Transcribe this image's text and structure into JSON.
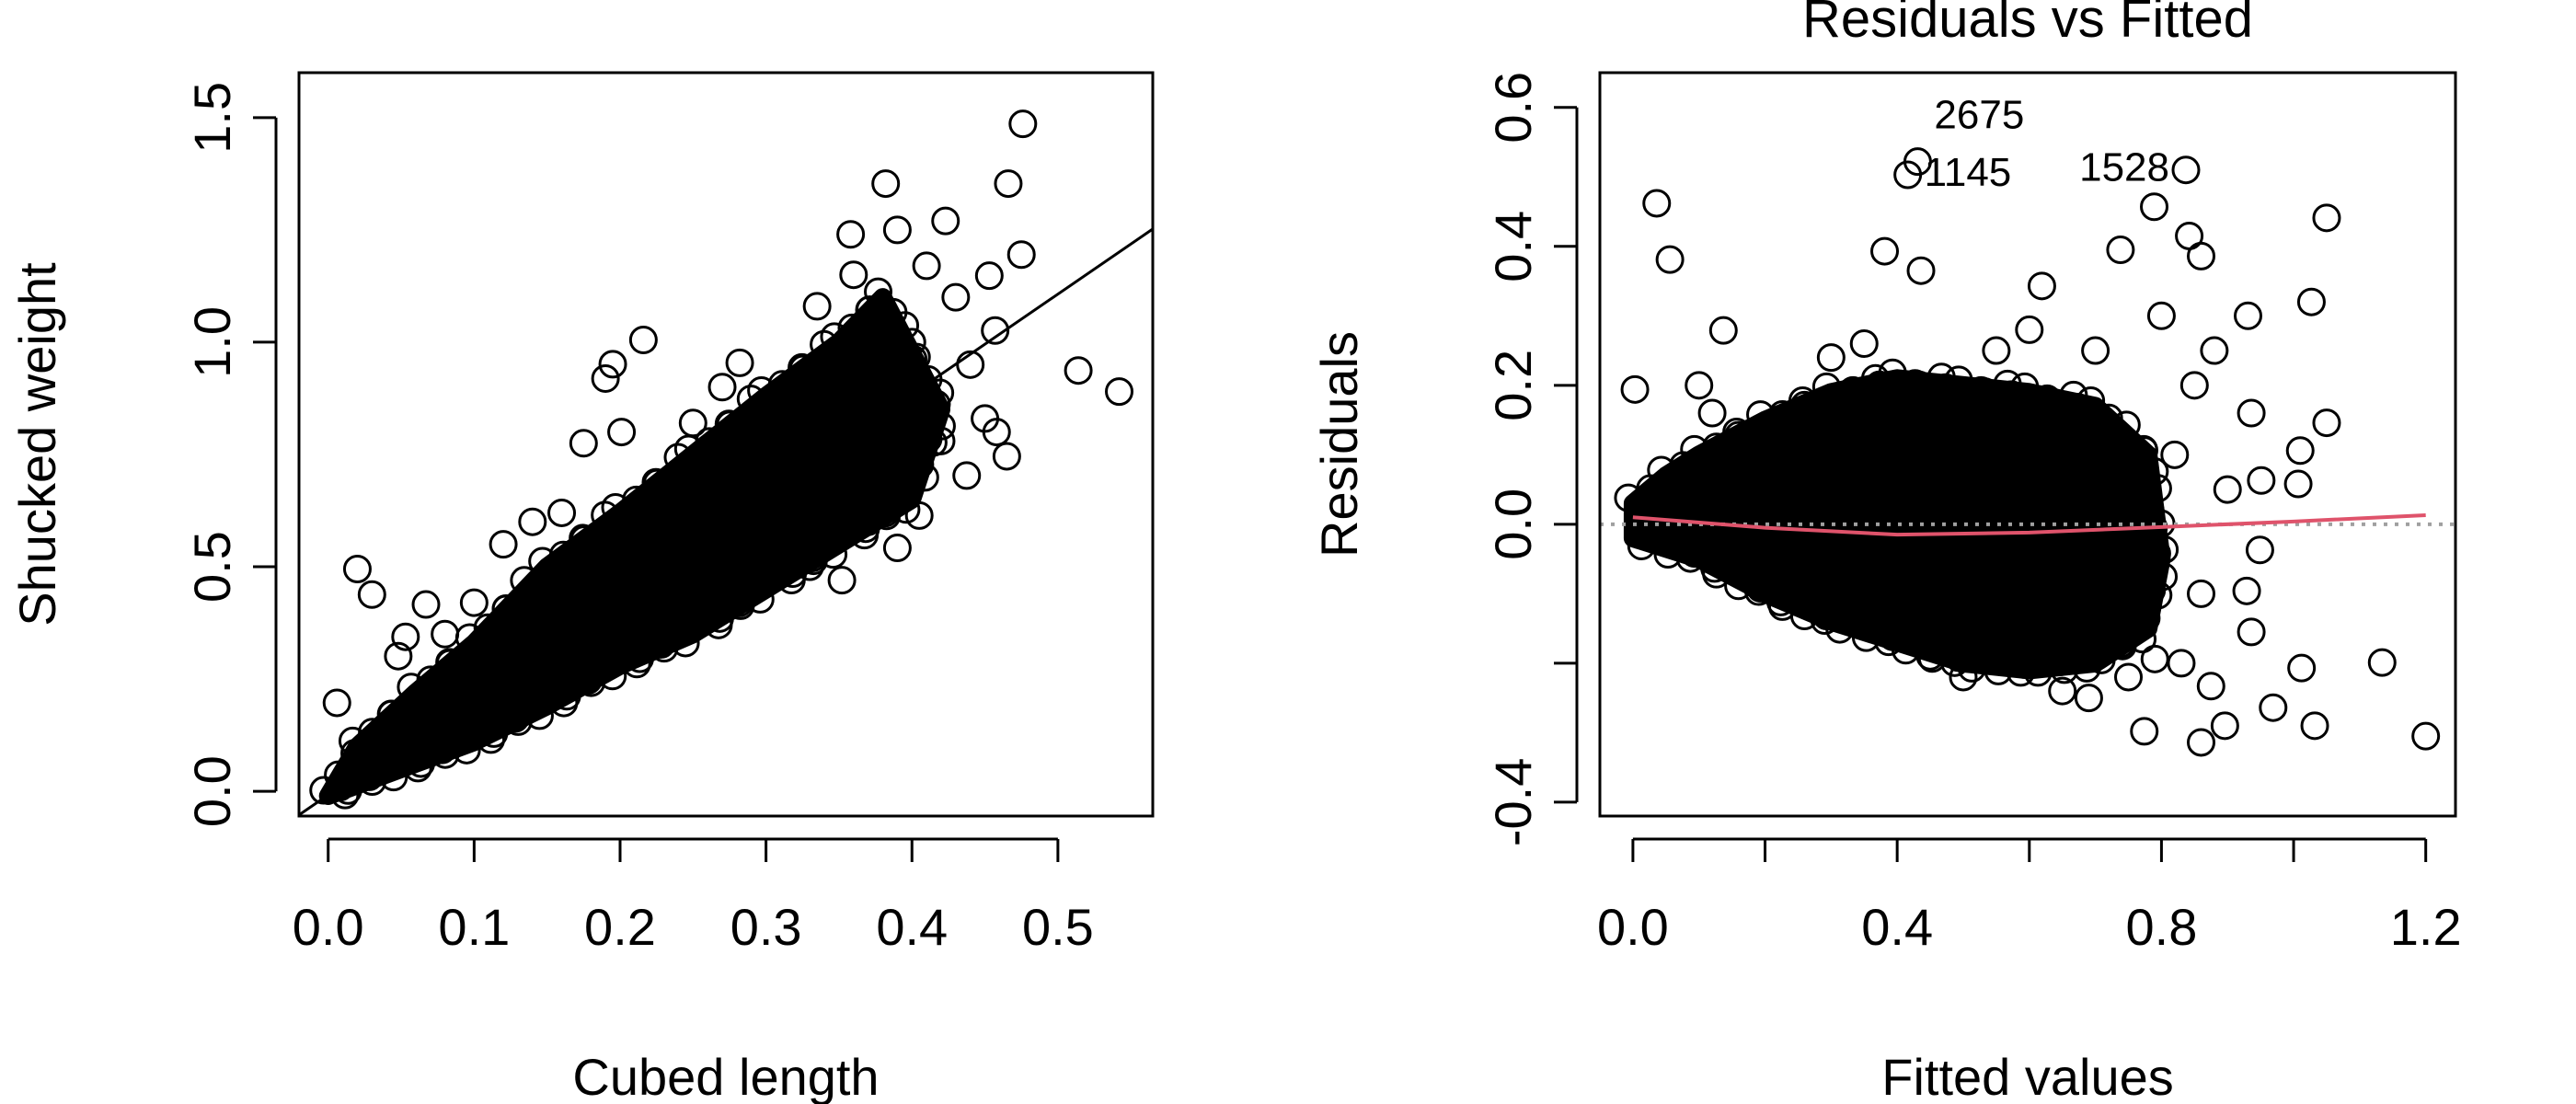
{
  "chart_data": [
    {
      "type": "scatter",
      "title": "",
      "xlabel": "Cubed length",
      "ylabel": "Shucked weight",
      "xlim": [
        -0.02,
        0.565
      ],
      "ylim": [
        -0.055,
        1.6
      ],
      "xticks": [
        0.0,
        0.1,
        0.2,
        0.3,
        0.4,
        0.5
      ],
      "xtick_labels": [
        "0.0",
        "0.1",
        "0.2",
        "0.3",
        "0.4",
        "0.5"
      ],
      "yticks": [
        0.0,
        0.5,
        1.0,
        1.5
      ],
      "ytick_labels": [
        "0.0",
        "0.5",
        "1.0",
        "1.5"
      ],
      "grid": false,
      "marker": "open-circle",
      "point_color": "#000000",
      "fit_line": {
        "intercept": -0.008,
        "slope": 2.23,
        "color": "#000000"
      },
      "dense_region": [
        [
          0,
          -0.01
        ],
        [
          0.02,
          0.1
        ],
        [
          0.06,
          0.22
        ],
        [
          0.1,
          0.33
        ],
        [
          0.15,
          0.5
        ],
        [
          0.2,
          0.62
        ],
        [
          0.25,
          0.75
        ],
        [
          0.3,
          0.88
        ],
        [
          0.35,
          1.0
        ],
        [
          0.38,
          1.1
        ],
        [
          0.42,
          0.85
        ],
        [
          0.4,
          0.65
        ],
        [
          0.35,
          0.55
        ],
        [
          0.3,
          0.45
        ],
        [
          0.25,
          0.35
        ],
        [
          0.2,
          0.28
        ],
        [
          0.15,
          0.19
        ],
        [
          0.1,
          0.11
        ],
        [
          0.05,
          0.05
        ],
        [
          0,
          -0.01
        ]
      ],
      "points": [
        [
          0.476,
          1.486
        ],
        [
          0.466,
          1.353
        ],
        [
          0.382,
          1.353
        ],
        [
          0.475,
          1.195
        ],
        [
          0.514,
          0.937
        ],
        [
          0.542,
          0.89
        ],
        [
          0.216,
          1.005
        ],
        [
          0.195,
          0.951
        ],
        [
          0.19,
          0.919
        ],
        [
          0.175,
          0.775
        ],
        [
          0.201,
          0.8
        ],
        [
          0.02,
          0.495
        ],
        [
          0.03,
          0.438
        ],
        [
          0.006,
          0.197
        ],
        [
          0.067,
          0.416
        ],
        [
          0.4375,
          0.703
        ],
        [
          0.465,
          0.746
        ],
        [
          0.458,
          0.8
        ],
        [
          0.39,
          0.542
        ],
        [
          0.405,
          0.614
        ],
        [
          0.352,
          0.47
        ],
        [
          0.358,
          1.24
        ],
        [
          0.423,
          1.27
        ],
        [
          0.453,
          1.148
        ],
        [
          0.457,
          1.026
        ],
        [
          0.335,
          1.08
        ],
        [
          0.282,
          0.954
        ],
        [
          0.3,
          0.865
        ],
        [
          0.048,
          0.301
        ],
        [
          0.053,
          0.344
        ],
        [
          0.39,
          1.25
        ],
        [
          0.41,
          1.17
        ],
        [
          0.43,
          1.1
        ],
        [
          0.36,
          1.15
        ],
        [
          0.4,
          1.0
        ],
        [
          0.44,
          0.95
        ],
        [
          0.42,
          0.78
        ],
        [
          0.45,
          0.83
        ],
        [
          0.37,
          0.6
        ],
        [
          0.33,
          0.5
        ],
        [
          0.14,
          0.6
        ],
        [
          0.16,
          0.62
        ],
        [
          0.12,
          0.55
        ],
        [
          0.1,
          0.42
        ],
        [
          0.08,
          0.35
        ],
        [
          0.25,
          0.82
        ],
        [
          0.27,
          0.9
        ]
      ]
    },
    {
      "type": "scatter",
      "title": "Residuals vs Fitted",
      "xlabel": "Fitted values",
      "ylabel": "Residuals",
      "xlim": [
        -0.05,
        1.245
      ],
      "ylim": [
        -0.42,
        0.65
      ],
      "xticks": [
        0.0,
        0.2,
        0.4,
        0.6,
        0.8,
        1.0,
        1.2
      ],
      "xtick_labels": [
        "0.0",
        "",
        "0.4",
        "",
        "0.8",
        "",
        "1.2"
      ],
      "yticks": [
        -0.4,
        -0.2,
        0.0,
        0.2,
        0.4,
        0.6
      ],
      "ytick_labels": [
        "-0.4",
        "",
        "0.0",
        "0.2",
        "0.4",
        "0.6"
      ],
      "grid": false,
      "marker": "open-circle",
      "point_color": "#000000",
      "reference_line": {
        "y": 0,
        "style": "dotted",
        "color": "#a0a0a0"
      },
      "smooth_line": {
        "color": "#DF536B",
        "points": [
          [
            0,
            0.01
          ],
          [
            0.2,
            -0.005
          ],
          [
            0.4,
            -0.015
          ],
          [
            0.6,
            -0.012
          ],
          [
            0.8,
            -0.004
          ],
          [
            1.0,
            0.004
          ],
          [
            1.2,
            0.013
          ]
        ]
      },
      "dense_region": [
        [
          0,
          0.03
        ],
        [
          0.05,
          0.07
        ],
        [
          0.1,
          0.1
        ],
        [
          0.2,
          0.15
        ],
        [
          0.3,
          0.19
        ],
        [
          0.4,
          0.21
        ],
        [
          0.5,
          0.2
        ],
        [
          0.6,
          0.19
        ],
        [
          0.7,
          0.17
        ],
        [
          0.78,
          0.1
        ],
        [
          0.8,
          -0.05
        ],
        [
          0.78,
          -0.15
        ],
        [
          0.7,
          -0.2
        ],
        [
          0.6,
          -0.21
        ],
        [
          0.5,
          -0.2
        ],
        [
          0.4,
          -0.17
        ],
        [
          0.3,
          -0.14
        ],
        [
          0.2,
          -0.1
        ],
        [
          0.1,
          -0.05
        ],
        [
          0,
          -0.02
        ]
      ],
      "points": [
        [
          0.036,
          0.462
        ],
        [
          0.056,
          0.381
        ],
        [
          0.003,
          0.194
        ],
        [
          0.137,
          0.279
        ],
        [
          0.381,
          0.393
        ],
        [
          0.436,
          0.365
        ],
        [
          0.416,
          0.503
        ],
        [
          0.431,
          0.522
        ],
        [
          0.837,
          0.51
        ],
        [
          0.789,
          0.457
        ],
        [
          0.842,
          0.415
        ],
        [
          1.05,
          0.441
        ],
        [
          1.027,
          0.32
        ],
        [
          0.738,
          0.395
        ],
        [
          0.619,
          0.343
        ],
        [
          0.86,
          0.386
        ],
        [
          1.007,
          0.058
        ],
        [
          1.01,
          0.106
        ],
        [
          1.05,
          0.146
        ],
        [
          1.134,
          -0.199
        ],
        [
          1.2,
          -0.305
        ],
        [
          1.012,
          -0.207
        ],
        [
          1.032,
          -0.29
        ],
        [
          0.969,
          -0.264
        ],
        [
          0.896,
          -0.29
        ],
        [
          0.86,
          -0.314
        ],
        [
          0.774,
          -0.298
        ],
        [
          0.875,
          -0.233
        ],
        [
          0.936,
          -0.155
        ],
        [
          0.929,
          -0.096
        ],
        [
          0.949,
          -0.037
        ],
        [
          0.951,
          0.063
        ],
        [
          0.936,
          0.16
        ],
        [
          0.931,
          0.3
        ],
        [
          0.69,
          -0.25
        ],
        [
          0.79,
          -0.194
        ],
        [
          0.85,
          0.2
        ],
        [
          0.88,
          0.25
        ],
        [
          0.82,
          0.1
        ],
        [
          0.86,
          -0.1
        ],
        [
          0.83,
          -0.2
        ],
        [
          0.9,
          0.05
        ],
        [
          0.1,
          0.2
        ],
        [
          0.12,
          0.16
        ],
        [
          0.3,
          0.24
        ],
        [
          0.35,
          0.26
        ],
        [
          0.55,
          0.25
        ],
        [
          0.6,
          0.28
        ],
        [
          0.7,
          0.25
        ],
        [
          0.75,
          -0.22
        ],
        [
          0.65,
          -0.24
        ],
        [
          0.5,
          -0.22
        ],
        [
          0.45,
          -0.19
        ],
        [
          0.8,
          0.3
        ]
      ],
      "point_labels": [
        {
          "text": "1145",
          "x": 0.416,
          "y": 0.503,
          "side": "right"
        },
        {
          "text": "2675",
          "x": 0.431,
          "y": 0.522,
          "side": "right"
        },
        {
          "text": "1528",
          "x": 0.837,
          "y": 0.51,
          "side": "left"
        }
      ]
    }
  ]
}
